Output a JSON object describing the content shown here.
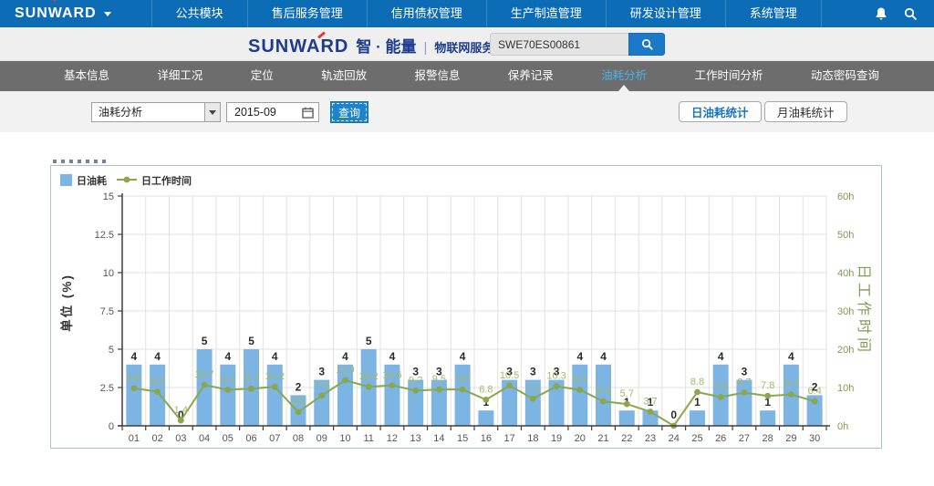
{
  "navbar": {
    "logo": "SUNWARD",
    "items": [
      "公共模块",
      "售后服务管理",
      "信用债权管理",
      "生产制造管理",
      "研发设计管理",
      "系统管理"
    ]
  },
  "header": {
    "brand": "SUNWARD",
    "product": "智 · 能量",
    "divider": "|",
    "platform": "物联网服务平台",
    "search_value": "SWE70ES00861"
  },
  "tabs": [
    "基本信息",
    "详细工况",
    "定位",
    "轨迹回放",
    "报警信息",
    "保养记录",
    "油耗分析",
    "工作时间分析",
    "动态密码查询"
  ],
  "active_tab_index": 6,
  "filter": {
    "select_value": "油耗分析",
    "date_value": "2015-09",
    "query_label": "查询",
    "daily_stat_label": "日油耗统计",
    "monthly_stat_label": "月油耗统计"
  },
  "chart_data": {
    "type": "bar",
    "categories": [
      "01",
      "02",
      "03",
      "04",
      "05",
      "06",
      "07",
      "08",
      "09",
      "10",
      "11",
      "12",
      "13",
      "14",
      "15",
      "16",
      "17",
      "18",
      "19",
      "20",
      "21",
      "22",
      "23",
      "24",
      "25",
      "26",
      "27",
      "28",
      "29",
      "30"
    ],
    "series": [
      {
        "name": "日油耗",
        "type": "bar",
        "axis": "left",
        "color": "#7cb4e4",
        "values": [
          4,
          4,
          0,
          5,
          4,
          5,
          4,
          2,
          3,
          4,
          5,
          4,
          3,
          3,
          4,
          1,
          3,
          3,
          3,
          4,
          4,
          1,
          1,
          0,
          1,
          4,
          3,
          1,
          4,
          2
        ]
      },
      {
        "name": "日工作时间",
        "type": "line",
        "axis": "right",
        "color": "#8ba74b",
        "values": [
          9.8,
          8.9,
          1.4,
          10.7,
          9.4,
          9.7,
          10.2,
          3.6,
          7.9,
          11.9,
          10.2,
          10.6,
          9.2,
          9.5,
          9.5,
          6.8,
          10.5,
          7.1,
          10.3,
          9.4,
          6.4,
          5.7,
          3.7,
          0,
          8.8,
          7.5,
          8.7,
          7.8,
          8.2,
          6.4
        ]
      }
    ],
    "left_axis": {
      "label": "单位 (%)",
      "min": 0,
      "max": 15,
      "ticks": [
        "0",
        "2.5",
        "5",
        "7.5",
        "10",
        "12.5",
        "15"
      ]
    },
    "right_axis": {
      "label": "日工作时间",
      "min": 0,
      "max": 60,
      "ticks": [
        "0h",
        "10h",
        "20h",
        "30h",
        "40h",
        "50h",
        "60h"
      ]
    },
    "legend_position": "top-left",
    "grid": true,
    "colors": {
      "bar": "#7cb4e4",
      "line": "#8ba74b",
      "point_label": "#a3b966",
      "right_tick": "#7f9c52",
      "bar_label": "#2b2b2b",
      "axis": "#3f3f3f",
      "gridline": "#e2e2e2",
      "tick_label": "#555555"
    }
  }
}
